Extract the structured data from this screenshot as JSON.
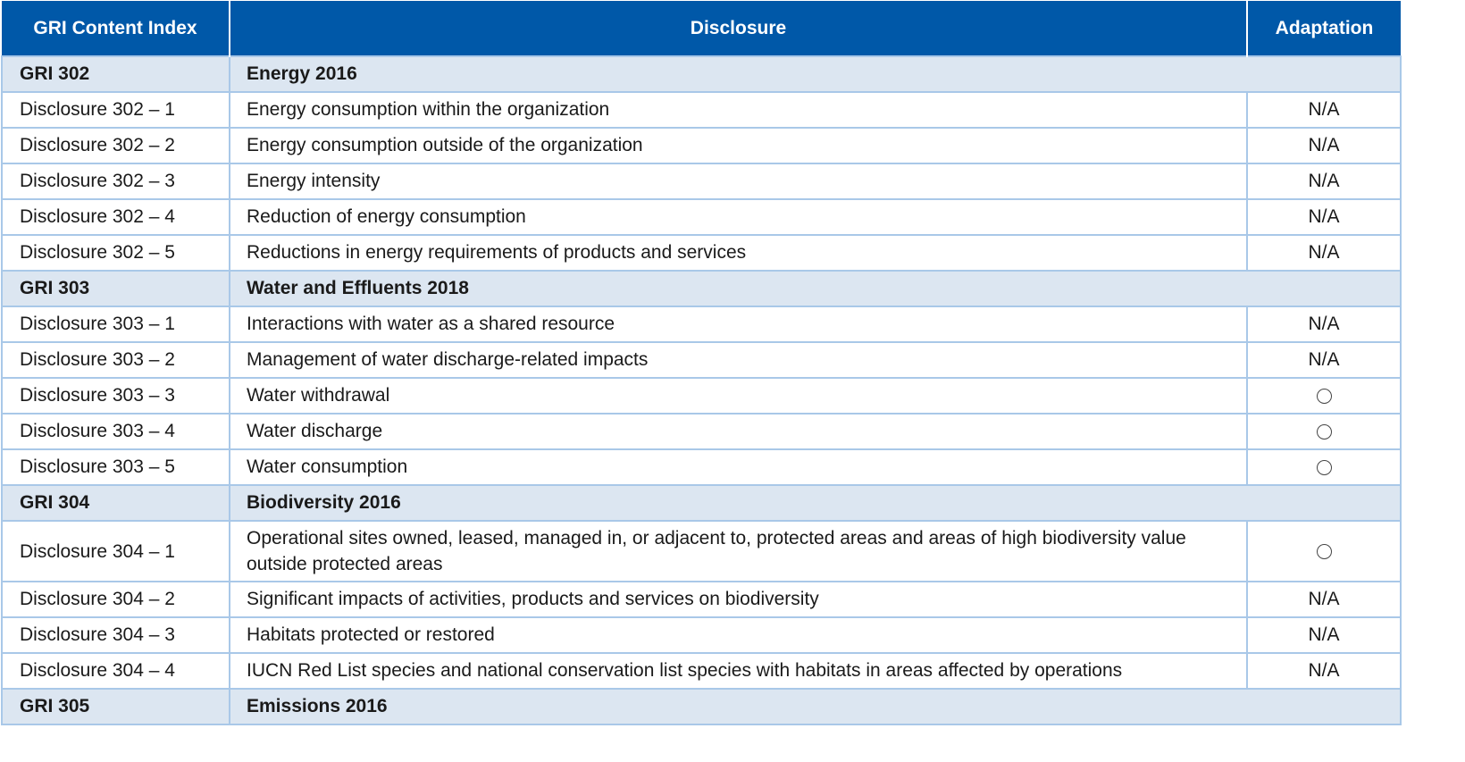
{
  "headers": [
    "GRI Content Index",
    "Disclosure",
    "Adaptation"
  ],
  "rows": [
    {
      "type": "group",
      "code": "GRI 302",
      "title": "Energy 2016"
    },
    {
      "type": "item",
      "code": "Disclosure 302 – 1",
      "text": "Energy consumption within the organization",
      "adaptation": "N/A"
    },
    {
      "type": "item",
      "code": "Disclosure 302 – 2",
      "text": "Energy consumption outside of the organization",
      "adaptation": "N/A"
    },
    {
      "type": "item",
      "code": "Disclosure 302 – 3",
      "text": "Energy intensity",
      "adaptation": "N/A"
    },
    {
      "type": "item",
      "code": "Disclosure 302 – 4",
      "text": "Reduction of energy consumption",
      "adaptation": "N/A"
    },
    {
      "type": "item",
      "code": "Disclosure 302 – 5",
      "text": "Reductions in energy requirements of products and services",
      "adaptation": "N/A"
    },
    {
      "type": "group",
      "code": "GRI 303",
      "title": "Water and Effluents 2018"
    },
    {
      "type": "item",
      "code": "Disclosure 303 – 1",
      "text": "Interactions with water as a shared resource",
      "adaptation": "N/A"
    },
    {
      "type": "item",
      "code": "Disclosure 303 – 2",
      "text": "Management of water discharge-related impacts",
      "adaptation": "N/A"
    },
    {
      "type": "item",
      "code": "Disclosure 303 – 3",
      "text": "Water withdrawal",
      "adaptation": "○"
    },
    {
      "type": "item",
      "code": "Disclosure 303 – 4",
      "text": "Water discharge",
      "adaptation": "○"
    },
    {
      "type": "item",
      "code": "Disclosure 303 – 5",
      "text": "Water consumption",
      "adaptation": "○"
    },
    {
      "type": "group",
      "code": "GRI 304",
      "title": "Biodiversity 2016"
    },
    {
      "type": "item",
      "code": "Disclosure 304 – 1",
      "text": "Operational sites owned, leased, managed in, or adjacent to, protected areas and areas of high biodiversity value outside protected areas",
      "adaptation": "○",
      "tall": true
    },
    {
      "type": "item",
      "code": "Disclosure 304 – 2",
      "text": "Significant impacts of activities, products and services on biodiversity",
      "adaptation": "N/A"
    },
    {
      "type": "item",
      "code": "Disclosure 304 – 3",
      "text": "Habitats protected or restored",
      "adaptation": "N/A"
    },
    {
      "type": "item",
      "code": "Disclosure 304 – 4",
      "text": "IUCN Red List species and national conservation list species with habitats in areas affected by operations",
      "adaptation": "N/A"
    },
    {
      "type": "group",
      "code": "GRI 305",
      "title": "Emissions 2016"
    }
  ]
}
